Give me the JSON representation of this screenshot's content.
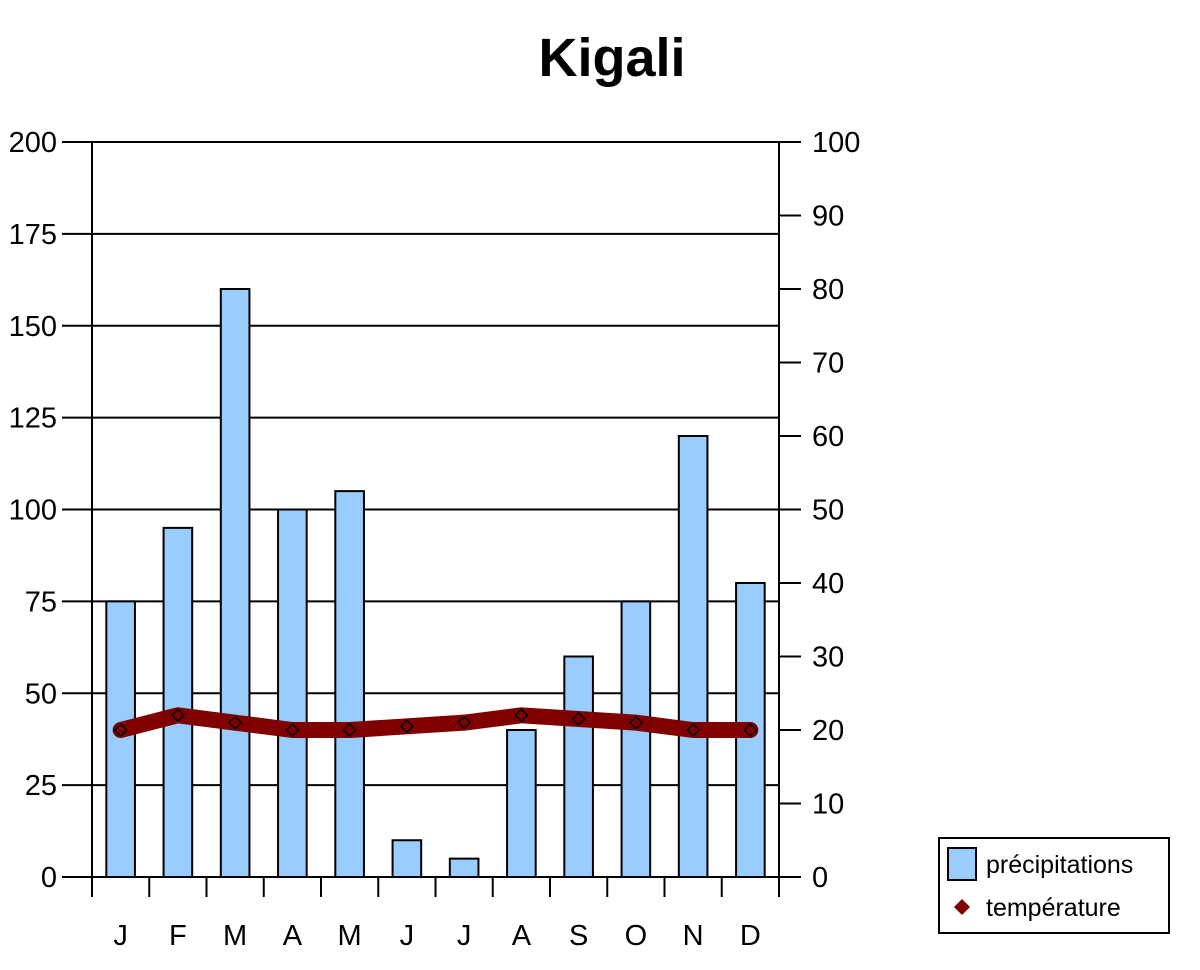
{
  "chart_data": {
    "type": "bar",
    "title": "Kigali",
    "categories": [
      "J",
      "F",
      "M",
      "A",
      "M",
      "J",
      "J",
      "A",
      "S",
      "O",
      "N",
      "D"
    ],
    "series": [
      {
        "name": "précipitations",
        "type": "bar",
        "axis": "left",
        "values": [
          75,
          95,
          160,
          100,
          105,
          10,
          5,
          40,
          60,
          75,
          120,
          80
        ],
        "color": "#99ccff"
      },
      {
        "name": "température",
        "type": "line",
        "axis": "right",
        "values": [
          20,
          22,
          21,
          20,
          20,
          20.5,
          21,
          22,
          21.5,
          21,
          20,
          20
        ],
        "color": "#800000"
      }
    ],
    "y_left": {
      "range": [
        0,
        200
      ],
      "ticks": [
        0,
        25,
        50,
        75,
        100,
        125,
        150,
        175,
        200
      ]
    },
    "y_right": {
      "range": [
        0,
        100
      ],
      "ticks": [
        0,
        10,
        20,
        30,
        40,
        50,
        60,
        70,
        80,
        90,
        100
      ]
    },
    "grid": true,
    "legend_position": "bottom-right"
  }
}
